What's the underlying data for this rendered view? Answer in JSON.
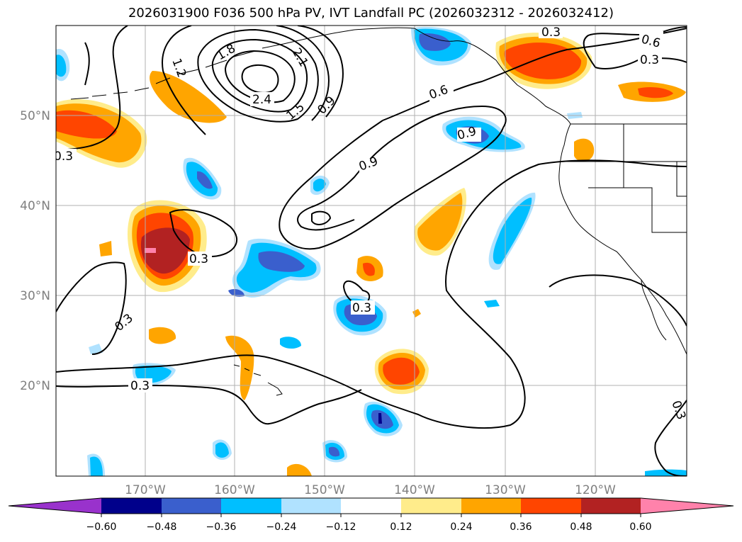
{
  "title": "2026031900 F036 500 hPa PV, IVT Landfall PC (2026032312 - 2026032412)",
  "axes": {
    "lon_ticks": [
      "170°W",
      "160°W",
      "150°W",
      "140°W",
      "130°W",
      "120°W"
    ],
    "lat_ticks": [
      "50°N",
      "40°N",
      "30°N",
      "20°N"
    ]
  },
  "contour_labels": [
    "0.3",
    "0.6",
    "0.9",
    "1.2",
    "1.5",
    "1.8",
    "2.1",
    "2.4"
  ],
  "colorbar": {
    "ticks": [
      "−0.60",
      "−0.48",
      "−0.36",
      "−0.24",
      "−0.12",
      "0.12",
      "0.24",
      "0.36",
      "0.48",
      "0.60"
    ],
    "colors": [
      "#9932cc",
      "#00008b",
      "#3a5fcd",
      "#00bfff",
      "#b0e2ff",
      "#ffffff",
      "#ffec8b",
      "#ffa500",
      "#ff4500",
      "#b22222",
      "#ff82ab"
    ]
  }
}
